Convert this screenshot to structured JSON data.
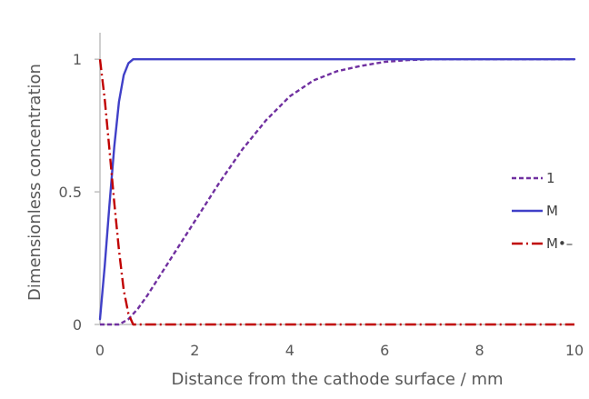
{
  "chart_data": {
    "type": "line",
    "title": "",
    "xlabel": "Distance from the cathode surface / mm",
    "ylabel": "Dimensionless concentration",
    "xlim": [
      0,
      10
    ],
    "ylim": [
      0,
      1.1
    ],
    "x_ticks": [
      "0",
      "2",
      "4",
      "6",
      "8",
      "10"
    ],
    "x_tick_values": [
      0,
      2,
      4,
      6,
      8,
      10
    ],
    "y_ticks": [
      "0",
      "0.5",
      "1"
    ],
    "y_tick_values": [
      0,
      0.5,
      1
    ],
    "grid": false,
    "legend_position": "right",
    "series": [
      {
        "name": "1",
        "color": "#7030A0",
        "dash": "dashed",
        "x": [
          0,
          0.4,
          0.6,
          0.8,
          1.0,
          1.5,
          2.0,
          2.5,
          3.0,
          3.5,
          4.0,
          4.5,
          5.0,
          5.5,
          6.0,
          6.5,
          7.0,
          8.0,
          9.0,
          10.0
        ],
        "y": [
          0,
          0,
          0.02,
          0.06,
          0.11,
          0.25,
          0.39,
          0.53,
          0.66,
          0.77,
          0.86,
          0.92,
          0.955,
          0.975,
          0.99,
          0.997,
          1.0,
          1.0,
          1.0,
          1.0
        ]
      },
      {
        "name": "M",
        "color": "#4040C8",
        "dash": "solid",
        "x": [
          0,
          0.1,
          0.2,
          0.3,
          0.4,
          0.5,
          0.6,
          0.7,
          0.8,
          1.0,
          2.0,
          4.0,
          6.0,
          8.0,
          10.0
        ],
        "y": [
          0.02,
          0.22,
          0.45,
          0.67,
          0.84,
          0.94,
          0.985,
          1.0,
          1.0,
          1.0,
          1.0,
          1.0,
          1.0,
          1.0,
          1.0
        ]
      },
      {
        "name": "M•–",
        "color": "#C00000",
        "dash": "dashdot",
        "x": [
          0,
          0.1,
          0.2,
          0.3,
          0.4,
          0.5,
          0.6,
          0.7,
          1.0,
          2.0,
          4.0,
          6.0,
          8.0,
          10.0
        ],
        "y": [
          1.0,
          0.85,
          0.66,
          0.46,
          0.28,
          0.13,
          0.04,
          0.0,
          0.0,
          0.0,
          0.0,
          0.0,
          0.0,
          0.0
        ]
      }
    ]
  }
}
